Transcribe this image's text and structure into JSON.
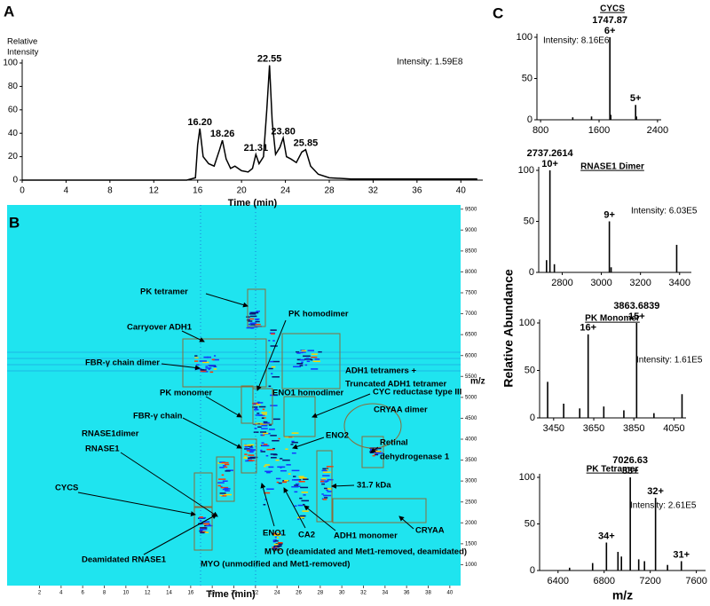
{
  "chart_data": [
    {
      "type": "line",
      "panel": "A",
      "ylabel": [
        "Relative",
        "Intensity"
      ],
      "xlabel": "Time (min)",
      "intensity_label": "Intensity: 1.59E8",
      "color": "#000000",
      "xlim": [
        0,
        42
      ],
      "ylim": [
        0,
        100
      ],
      "xticks": [
        0,
        4,
        8,
        12,
        16,
        20,
        24,
        28,
        32,
        36,
        40
      ],
      "yticks": [
        0,
        20,
        40,
        60,
        80,
        100
      ],
      "x": [
        0,
        5,
        10,
        15,
        15.8,
        16.0,
        16.2,
        16.5,
        17.0,
        17.5,
        18.0,
        18.26,
        18.6,
        19.0,
        19.4,
        20.0,
        20.6,
        21.0,
        21.31,
        21.6,
        22.0,
        22.3,
        22.55,
        22.8,
        23.1,
        23.5,
        23.8,
        24.1,
        24.5,
        25.0,
        25.5,
        25.85,
        26.3,
        27.0,
        28,
        30,
        35,
        40,
        41.5
      ],
      "values": [
        0,
        0,
        0,
        0,
        2,
        30,
        44,
        20,
        14,
        12,
        26,
        34,
        18,
        10,
        12,
        8,
        7,
        10,
        22,
        14,
        20,
        60,
        98,
        50,
        22,
        28,
        36,
        20,
        18,
        15,
        24,
        26,
        12,
        5,
        2,
        1,
        1,
        1,
        1
      ],
      "peak_labels": [
        {
          "x": 16.2,
          "y": 44,
          "text": [
            "16.20"
          ]
        },
        {
          "x": 18.26,
          "y": 34,
          "text": [
            "18.26"
          ]
        },
        {
          "x": 21.31,
          "y": 22,
          "text": [
            "21.31"
          ]
        },
        {
          "x": 22.55,
          "y": 98,
          "text": [
            "22.55"
          ]
        },
        {
          "x": 23.8,
          "y": 36,
          "text": [
            "23.80"
          ]
        },
        {
          "x": 25.85,
          "y": 26,
          "text": [
            "25.85"
          ]
        }
      ]
    },
    {
      "type": "heatmap",
      "panel": "B",
      "xlabel": "Time (min)",
      "ylabel": "m/z",
      "xlim": [
        -1,
        41
      ],
      "ylim": [
        500,
        9600
      ],
      "xticks": [
        2,
        4,
        6,
        8,
        10,
        12,
        14,
        16,
        18,
        20,
        22,
        24,
        26,
        28,
        30,
        32,
        34,
        36,
        38,
        40
      ],
      "yticks": [
        1000,
        1500,
        2000,
        2500,
        3000,
        3500,
        4000,
        4500,
        5000,
        5500,
        6000,
        6500,
        7000,
        7500,
        8000,
        8500,
        9000,
        9500
      ],
      "annotations": [
        "PK tetramer",
        "Carryover ADH1",
        "PK homodimer",
        "FBR-γ chain dimer",
        "ADH1 tetramers +",
        "Truncated ADH1 tetramer",
        "PK monomer",
        "ENO1 homodimer",
        "CYC reductase type III",
        "FBR-γ chain",
        "CRYAA dimer",
        "RNASE1dimer",
        "ENO2",
        "RNASE1",
        "Retinal",
        "dehydrogenase 1",
        "31.7 kDa",
        "CYCS",
        "CRYAA",
        "ENO1",
        "CA2",
        "ADH1 monomer",
        "MYO (deamidated and Met1-removed, deamidated)",
        "Deamidated RNASE1",
        "MYO (unmodified and Met1-removed)"
      ]
    },
    {
      "type": "spectrum",
      "panel": "C",
      "title": "CYCS",
      "intensity_label": "Intensity: 8.16E6",
      "color": "#000000",
      "xlim": [
        750,
        2450
      ],
      "ylim": [
        0,
        100
      ],
      "xticks": [
        800,
        1600,
        2400
      ],
      "yticks": [
        0,
        50,
        100
      ],
      "x": [
        1240,
        1497,
        1747.87,
        1760,
        2100,
        2112
      ],
      "values": [
        3,
        4,
        100,
        6,
        18,
        4
      ],
      "peak_labels": [
        {
          "x": 1747.87,
          "y": 100,
          "text": [
            "1747.87",
            "6+"
          ]
        },
        {
          "x": 2100,
          "y": 18,
          "text": [
            "5+"
          ]
        }
      ]
    },
    {
      "type": "spectrum",
      "title": "RNASE1 Dimer",
      "intensity_label": "Intensity: 6.03E5",
      "color": "#000000",
      "xlim": [
        2680,
        3460
      ],
      "ylim": [
        0,
        100
      ],
      "xticks": [
        2800,
        3000,
        3200,
        3400
      ],
      "yticks": [
        0,
        50,
        100
      ],
      "x": [
        2720,
        2737.2614,
        2760,
        3041,
        3050,
        3385
      ],
      "values": [
        12,
        100,
        8,
        50,
        5,
        27
      ],
      "peak_labels": [
        {
          "x": 2737.2614,
          "y": 100,
          "text": [
            "2737.2614",
            "10+"
          ]
        },
        {
          "x": 3041,
          "y": 50,
          "text": [
            "9+"
          ]
        }
      ]
    },
    {
      "type": "spectrum",
      "title": "PK Monomer",
      "intensity_label": "Intensity: 1.61E5",
      "color": "#000000",
      "ylabel": "Relative Abundance",
      "xlim": [
        3380,
        4110
      ],
      "ylim": [
        0,
        100
      ],
      "xticks": [
        3450,
        3650,
        3850,
        4050
      ],
      "yticks": [
        0,
        50,
        100
      ],
      "x": [
        3420,
        3500,
        3580,
        3622,
        3700,
        3800,
        3863.6839,
        3950,
        4090
      ],
      "values": [
        38,
        15,
        10,
        88,
        12,
        8,
        100,
        5,
        25
      ],
      "peak_labels": [
        {
          "x": 3622,
          "y": 88,
          "text": [
            "16+"
          ]
        },
        {
          "x": 3863.6839,
          "y": 100,
          "text": [
            "3863.6839",
            "15+"
          ]
        }
      ]
    },
    {
      "type": "spectrum",
      "title": "PK Tetramer",
      "intensity_label": "Intensity: 2.61E5",
      "color": "#000000",
      "xlabel": "m/z",
      "xlim": [
        6240,
        7680
      ],
      "ylim": [
        0,
        100
      ],
      "xticks": [
        6400,
        6800,
        7200,
        7600
      ],
      "yticks": [
        0,
        50,
        100
      ],
      "x": [
        6500,
        6700,
        6820,
        6920,
        6950,
        7026.63,
        7100,
        7150,
        7246,
        7350,
        7470
      ],
      "values": [
        3,
        8,
        30,
        20,
        15,
        100,
        12,
        10,
        78,
        6,
        10
      ],
      "peak_labels": [
        {
          "x": 6820,
          "y": 30,
          "text": [
            "34+"
          ]
        },
        {
          "x": 7026.63,
          "y": 100,
          "text": [
            "7026.63",
            "33+"
          ]
        },
        {
          "x": 7246,
          "y": 78,
          "text": [
            "32+"
          ]
        },
        {
          "x": 7470,
          "y": 10,
          "text": [
            "31+"
          ]
        }
      ]
    }
  ]
}
